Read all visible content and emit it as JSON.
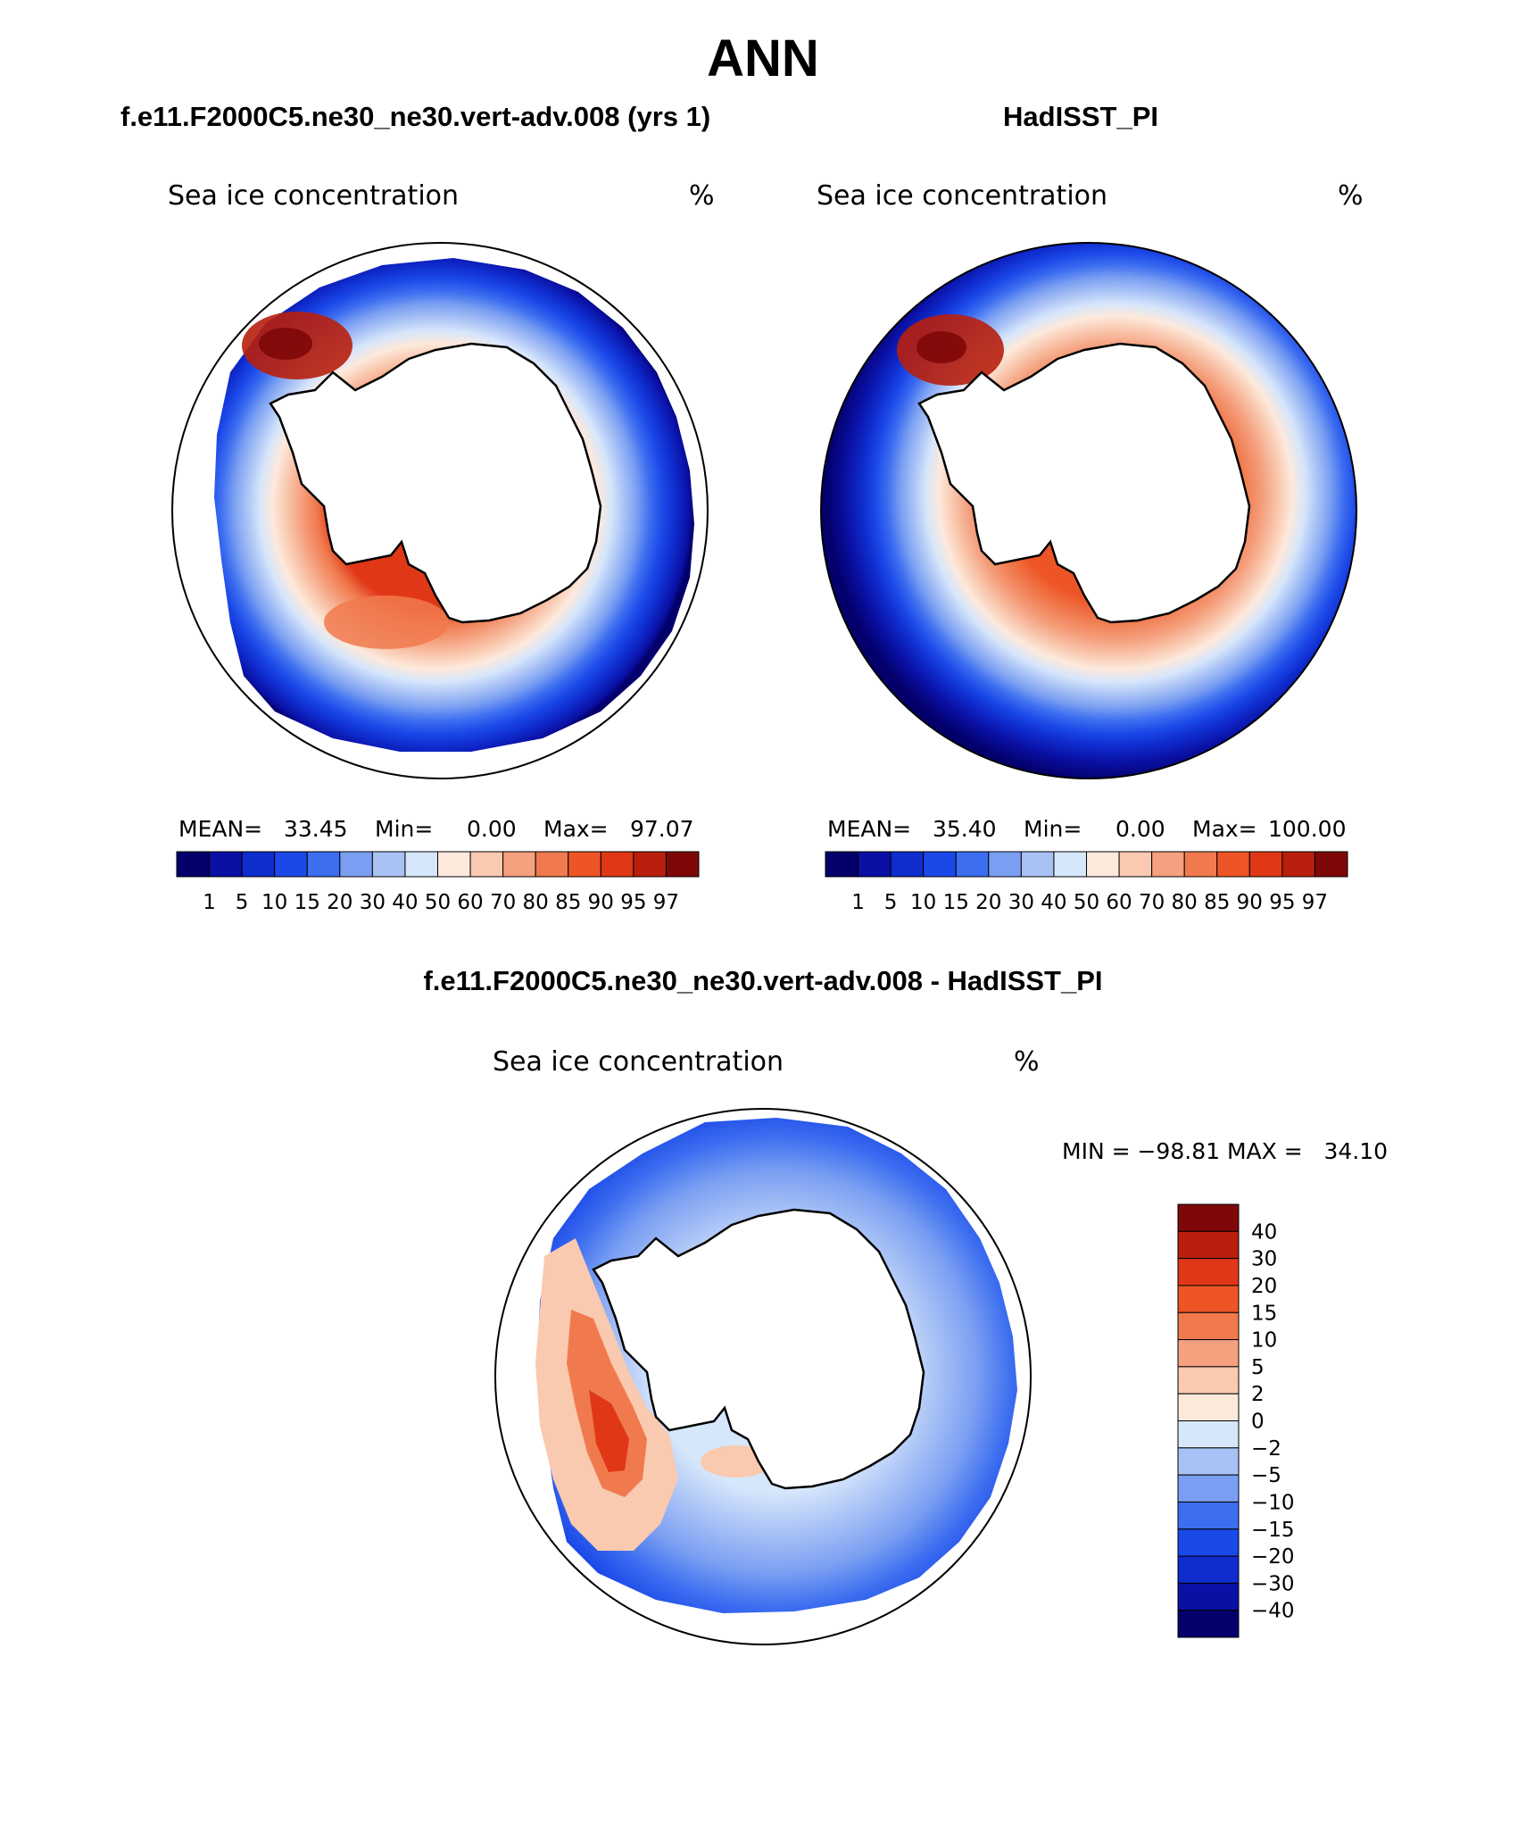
{
  "figure": {
    "title": "ANN"
  },
  "panels": {
    "model": {
      "title": "f.e11.F2000C5.ne30_ne30.vert-adv.008 (yrs 1)",
      "variable": "Sea ice concentration",
      "units": "%",
      "stats": {
        "mean_label": "MEAN=",
        "mean_value": "33.45",
        "min_label": "Min=",
        "min_value": "0.00",
        "max_label": "Max=",
        "max_value": "97.07"
      }
    },
    "obs": {
      "title": "HadISST_PI",
      "variable": "Sea ice concentration",
      "units": "%",
      "stats": {
        "mean_label": "MEAN=",
        "mean_value": "35.40",
        "min_label": "Min=",
        "min_value": "0.00",
        "max_label": "Max=",
        "max_value": "100.00"
      }
    },
    "diff": {
      "title": "f.e11.F2000C5.ne30_ne30.vert-adv.008 - HadISST_PI",
      "variable": "Sea ice concentration",
      "units": "%",
      "minmax": "MIN = −98.81 MAX =   34.10"
    }
  },
  "chart_data": [
    {
      "type": "heatmap",
      "projection": "south-polar-stereographic",
      "title": "Sea ice concentration",
      "units": "%",
      "mean": 33.45,
      "min": 0.0,
      "max": 97.07,
      "colorbar_levels": [
        "1",
        "5",
        "10",
        "15",
        "20",
        "30",
        "40",
        "50",
        "60",
        "70",
        "80",
        "85",
        "90",
        "95",
        "97"
      ],
      "colorbar_colors": [
        "#03006b",
        "#0a10a4",
        "#0f2ccd",
        "#1b48e8",
        "#3d6ef0",
        "#7a9ff2",
        "#a9c2f6",
        "#d6e6fb",
        "#fde9dc",
        "#f9c9b0",
        "#f5a07e",
        "#f07a4e",
        "#ee5526",
        "#e03816",
        "#b81f0d",
        "#7e0808"
      ]
    },
    {
      "type": "heatmap",
      "projection": "south-polar-stereographic",
      "title": "Sea ice concentration",
      "units": "%",
      "mean": 35.4,
      "min": 0.0,
      "max": 100.0,
      "colorbar_levels": [
        "1",
        "5",
        "10",
        "15",
        "20",
        "30",
        "40",
        "50",
        "60",
        "70",
        "80",
        "85",
        "90",
        "95",
        "97"
      ],
      "colorbar_colors": [
        "#03006b",
        "#0a10a4",
        "#0f2ccd",
        "#1b48e8",
        "#3d6ef0",
        "#7a9ff2",
        "#a9c2f6",
        "#d6e6fb",
        "#fde9dc",
        "#f9c9b0",
        "#f5a07e",
        "#f07a4e",
        "#ee5526",
        "#e03816",
        "#b81f0d",
        "#7e0808"
      ]
    },
    {
      "type": "heatmap",
      "projection": "south-polar-stereographic",
      "title": "Sea ice concentration",
      "units": "%",
      "min": -98.81,
      "max": 34.1,
      "colorbar_levels": [
        "40",
        "30",
        "20",
        "15",
        "10",
        "5",
        "2",
        "0",
        "−2",
        "−5",
        "−10",
        "−15",
        "−20",
        "−30",
        "−40"
      ],
      "colorbar_colors_top_to_bottom": [
        "#7e0808",
        "#b81f0d",
        "#e03816",
        "#ee5526",
        "#f07a4e",
        "#f5a07e",
        "#f9c9b0",
        "#fde9dc",
        "#d6e6fb",
        "#a9c2f6",
        "#7a9ff2",
        "#3d6ef0",
        "#1b48e8",
        "#0f2ccd",
        "#0a10a4",
        "#03006b"
      ]
    }
  ]
}
